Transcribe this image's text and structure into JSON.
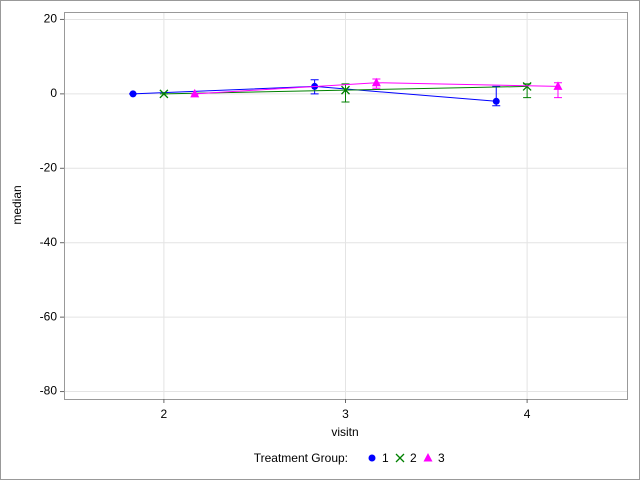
{
  "chart_data": {
    "type": "line",
    "x_label": "visitn",
    "y_label": "median",
    "xlim": [
      1.45,
      4.55
    ],
    "xticks": [
      2,
      3,
      4
    ],
    "ylim": [
      -82,
      22
    ],
    "yticks": [
      20,
      0,
      -20,
      -40,
      -60,
      -80
    ],
    "grid": true,
    "legend_title": "Treatment Group:",
    "legend_position": "bottom",
    "series": [
      {
        "name": "1",
        "color": "#0000ff",
        "marker": "circle",
        "x": [
          1.83,
          2.83,
          3.83
        ],
        "values": [
          0,
          2,
          -2
        ],
        "lower": [
          0,
          0,
          -3.2
        ],
        "upper": [
          0,
          3.8,
          2
        ]
      },
      {
        "name": "2",
        "color": "#008000",
        "marker": "x",
        "x": [
          2,
          3,
          4
        ],
        "values": [
          0,
          1,
          2
        ],
        "lower": [
          0,
          -2.2,
          -1
        ],
        "upper": [
          0,
          2.7,
          2.7
        ]
      },
      {
        "name": "3",
        "color": "#ff00ff",
        "marker": "triangle",
        "x": [
          2.17,
          3.17,
          4.17
        ],
        "values": [
          0,
          3,
          2
        ],
        "lower": [
          0,
          1.5,
          -1
        ],
        "upper": [
          0,
          4,
          3
        ]
      }
    ]
  }
}
